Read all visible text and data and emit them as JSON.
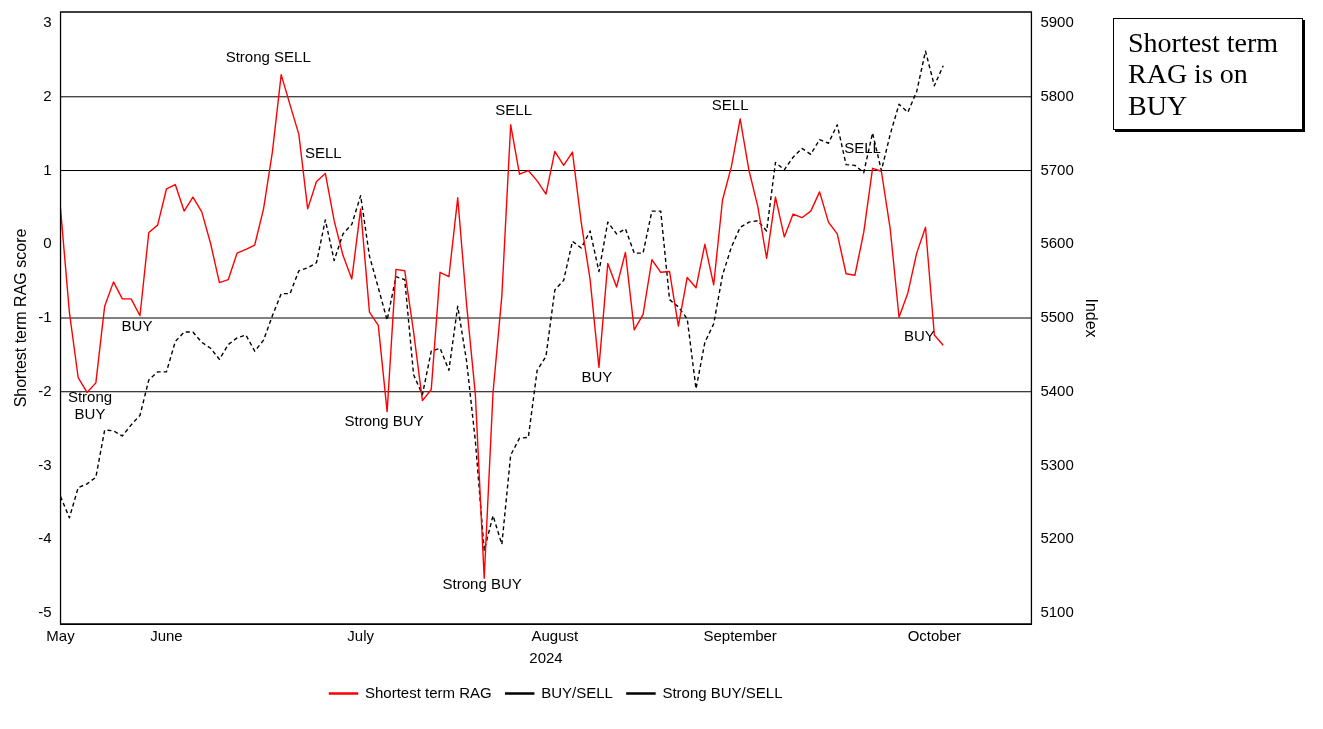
{
  "chart_data": {
    "type": "line",
    "categories": [
      "May",
      null,
      null,
      null,
      null,
      null,
      null,
      null,
      null,
      null,
      null,
      null,
      "June",
      null,
      null,
      null,
      null,
      null,
      null,
      null,
      null,
      null,
      null,
      null,
      null,
      null,
      null,
      null,
      null,
      null,
      null,
      null,
      null,
      null,
      "July",
      null,
      null,
      null,
      null,
      null,
      null,
      null,
      null,
      null,
      null,
      null,
      null,
      null,
      null,
      null,
      null,
      null,
      null,
      null,
      null,
      null,
      "August",
      null,
      null,
      null,
      null,
      null,
      null,
      null,
      null,
      null,
      null,
      null,
      null,
      null,
      null,
      null,
      null,
      null,
      null,
      null,
      null,
      "September",
      null,
      null,
      null,
      null,
      null,
      null,
      null,
      null,
      null,
      null,
      null,
      null,
      null,
      null,
      null,
      null,
      null,
      null,
      null,
      null,
      null,
      "October",
      null,
      null,
      null,
      null,
      null,
      null,
      null,
      null,
      null,
      null,
      null
    ],
    "xlabel": "2024",
    "ylabel": "Shortest term RAG score",
    "y2label": "Index",
    "series": [
      {
        "name": "Shortest term RAG",
        "color": "#ff0000",
        "values": [
          0.48,
          -0.92,
          -1.81,
          -2.01,
          -1.88,
          -0.84,
          -0.51,
          -0.74,
          -0.74,
          -0.97,
          0.16,
          0.26,
          0.75,
          0.81,
          0.45,
          0.64,
          0.44,
          0.01,
          -0.52,
          -0.48,
          -0.12,
          -0.07,
          -0.01,
          0.48,
          1.25,
          2.3,
          1.89,
          1.49,
          0.48,
          0.85,
          0.96,
          0.32,
          -0.15,
          -0.47,
          0.48,
          -0.92,
          -1.1,
          -2.27,
          -0.34,
          -0.36,
          -1.19,
          -2.12,
          -1.97,
          -0.38,
          -0.44,
          0.63,
          -0.81,
          -2.04,
          -4.53,
          -2.01,
          -0.7,
          1.62,
          0.95,
          1.0,
          0.86,
          0.68,
          1.26,
          1.07,
          1.25,
          0.29,
          -0.48,
          -1.67,
          -0.26,
          -0.58,
          -0.11,
          -1.16,
          -0.95,
          -0.21,
          -0.38,
          -0.37,
          -1.11,
          -0.45,
          -0.59,
          0.0,
          -0.55,
          0.6,
          1.05,
          1.7,
          1.0,
          0.51,
          -0.19,
          0.64,
          0.1,
          0.41,
          0.36,
          0.45,
          0.71,
          0.3,
          0.14,
          -0.4,
          -0.42,
          0.16,
          1.03,
          0.99,
          0.21,
          -0.99,
          -0.66,
          -0.12,
          0.23,
          -1.23,
          -1.37,
          null,
          null,
          null,
          null,
          null,
          null,
          null,
          null,
          null,
          null
        ]
      },
      {
        "color": "#000000",
        "axis": "y2",
        "line_style": "dashed",
        "values": [
          5258,
          5229,
          5270,
          5275,
          5284,
          5348,
          5347,
          5340,
          5355,
          5368,
          5416,
          5427,
          5427,
          5468,
          5481,
          5481,
          5467,
          5459,
          5444,
          5464,
          5473,
          5477,
          5455,
          5470,
          5503,
          5533,
          5533,
          5564,
          5568,
          5575,
          5633,
          5578,
          5614,
          5627,
          5666,
          5584,
          5541,
          5497,
          5556,
          5552,
          5423,
          5396,
          5455,
          5459,
          5429,
          5516,
          5442,
          5333,
          5185,
          5232,
          5193,
          5314,
          5337,
          5338,
          5429,
          5448,
          5538,
          5551,
          5604,
          5595,
          5618,
          5563,
          5630,
          5614,
          5621,
          5588,
          5588,
          5645,
          5645,
          5525,
          5515,
          5499,
          5404,
          5467,
          5492,
          5558,
          5596,
          5623,
          5630,
          5632,
          5618,
          5711,
          5701,
          5718,
          5730,
          5722,
          5742,
          5737,
          5762,
          5708,
          5707,
          5697,
          5751,
          5700,
          5749,
          5790,
          5779,
          5807,
          5862,
          5815,
          5842,
          null,
          null,
          null,
          null,
          null,
          null,
          null,
          null,
          null,
          null
        ]
      }
    ],
    "ylim": [
      -5.15,
      3.15
    ],
    "yticks": [
      -5,
      -4,
      -3,
      -2,
      -1,
      0,
      1,
      2,
      3
    ],
    "y2lim": [
      5085,
      5915
    ],
    "y2ticks": [
      5100,
      5200,
      5300,
      5400,
      5500,
      5600,
      5700,
      5800,
      5900
    ],
    "ref_lines": [
      {
        "axis": "y",
        "value": 1,
        "label": "BUY/SELL",
        "color": "#000000"
      },
      {
        "axis": "y",
        "value": 2,
        "label": "Strong BUY/SELL",
        "color": "#000000"
      },
      {
        "axis": "y",
        "value": -1,
        "color": "#000000"
      },
      {
        "axis": "y",
        "value": -2,
        "color": "#000000"
      }
    ],
    "annotations": [
      "Strong SELL",
      "SELL",
      "BUY",
      "Strong BUY",
      "Strong BUY",
      "Strong BUY",
      "SELL",
      "BUY",
      "SELL",
      "SELL",
      "BUY",
      "Shortest term RAG is on BUY"
    ],
    "grid": false,
    "legend": "bottom",
    "marker": "none",
    "line_style": "solid"
  }
}
